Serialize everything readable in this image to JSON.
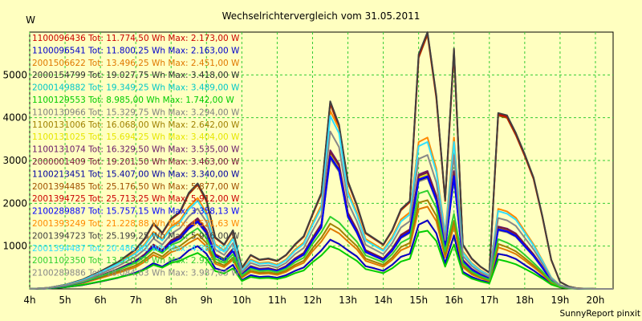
{
  "chart_data": {
    "type": "line",
    "title": "Wechselrichtervergleich vom 31.05.2011",
    "ylabel": "W",
    "footer": "SunnyReport pinxit",
    "ylim": [
      0,
      6000
    ],
    "yticks": [
      1000,
      2000,
      3000,
      4000,
      5000
    ],
    "xlim": [
      4,
      20.5
    ],
    "x_tick_labels": [
      "4h",
      "5h",
      "6h",
      "7h",
      "8h",
      "9h",
      "10h",
      "11h",
      "12h",
      "13h",
      "14h",
      "15h",
      "16h",
      "17h",
      "18h",
      "19h",
      "20h"
    ],
    "grid": true,
    "legend_position": "top-left",
    "series": [
      {
        "name": "1100096436 Tot: 11.774,50 Wh Max: 2.173,00 W",
        "color": "#cc0000",
        "scale": 1.0,
        "shape": "A"
      },
      {
        "name": "1100096541 Tot: 11.800,25 Wh Max: 2.163,00 W",
        "color": "#0000cc",
        "scale": 1.0,
        "shape": "A"
      },
      {
        "name": "2001506622 Tot: 13.496,25 Wh Max: 2.451,00 W",
        "color": "#e07800",
        "scale": 1.13,
        "shape": "B"
      },
      {
        "name": "2000154799 Tot: 19.027,75 Wh Max: 3.418,00 W",
        "color": "#333333",
        "scale": 1.57,
        "shape": "C"
      },
      {
        "name": "2000149882 Tot: 19.349,25 Wh Max: 3.489,00 W",
        "color": "#00c8c8",
        "scale": 1.6,
        "shape": "C"
      },
      {
        "name": "1100129553 Tot: 8.985,00 Wh Max: 1.742,00 W",
        "color": "#00cc00",
        "scale": 0.8,
        "shape": "B"
      },
      {
        "name": "1100130966 Tot: 15.329,75 Wh Max: 3.294,00 W",
        "color": "#808080",
        "scale": 1.52,
        "shape": "C"
      },
      {
        "name": "1100131006 Tot: 16.068,00 Wh Max: 2.642,00 W",
        "color": "#a08000",
        "scale": 1.22,
        "shape": "B"
      },
      {
        "name": "1100131025 Tot: 15.694,25 Wh Max: 3.404,00 W",
        "color": "#e6e600",
        "scale": 1.57,
        "shape": "C"
      },
      {
        "name": "1100131074 Tot: 16.329,50 Wh Max: 3.535,00 W",
        "color": "#6a1a6a",
        "scale": 1.62,
        "shape": "C"
      },
      {
        "name": "2000001409 Tot: 19.201,50 Wh Max: 3.463,00 W",
        "color": "#7a1a3a",
        "scale": 1.6,
        "shape": "C"
      },
      {
        "name": "1100213451 Tot: 15.407,00 Wh Max: 3.340,00 W",
        "color": "#0000a0",
        "scale": 1.54,
        "shape": "C"
      },
      {
        "name": "2001394485 Tot: 25.176,50 Wh Max: 5.877,00 W",
        "color": "#a05000",
        "scale": 2.7,
        "shape": "D"
      },
      {
        "name": "2001394725 Tot: 25.713,25 Wh Max: 5.912,00 W",
        "color": "#cc0000",
        "scale": 2.72,
        "shape": "D"
      },
      {
        "name": "2100289887 Tot: 15.757,15 Wh Max: 3.358,13 W",
        "color": "#0000ff",
        "scale": 1.55,
        "shape": "C"
      },
      {
        "name": "2001393249 Tot: 21.228,88 Wh Max: 4.521,63 W",
        "color": "#ff8800",
        "scale": 2.08,
        "shape": "C"
      },
      {
        "name": "2001394723 Tot: 25.199,25 Wh Max: 5.956,00 W",
        "color": "#404040",
        "scale": 2.74,
        "shape": "D"
      },
      {
        "name": "2001394487 Tot: 20.486,63 Wh Max: 4.387,00 W",
        "color": "#30e0ff",
        "scale": 2.02,
        "shape": "C"
      },
      {
        "name": "2001102350 Tot: 13.520,50 Wh Max: 2.928,00 W",
        "color": "#30d030",
        "scale": 1.35,
        "shape": "B"
      },
      {
        "name": "2100289886 Tot: 18.084,63 Wh Max: 3.987,63 W",
        "color": "#888888",
        "scale": 1.84,
        "shape": "C"
      }
    ],
    "base_profiles": {
      "x": [
        4.0,
        4.5,
        5.0,
        5.5,
        6.0,
        6.5,
        7.0,
        7.25,
        7.5,
        7.75,
        8.0,
        8.25,
        8.5,
        8.75,
        9.0,
        9.25,
        9.5,
        9.75,
        10.0,
        10.25,
        10.5,
        10.75,
        11.0,
        11.25,
        11.5,
        11.75,
        12.0,
        12.25,
        12.5,
        12.75,
        13.0,
        13.25,
        13.5,
        13.75,
        14.0,
        14.25,
        14.5,
        14.75,
        15.0,
        15.25,
        15.5,
        15.75,
        16.0,
        16.25,
        16.5,
        16.75,
        17.0,
        17.25,
        17.5,
        17.75,
        18.0,
        18.25,
        18.5,
        18.75,
        19.0,
        19.25,
        19.5,
        20.0,
        20.5
      ],
      "A": [
        0,
        10,
        40,
        90,
        170,
        260,
        380,
        470,
        600,
        520,
        650,
        720,
        900,
        1000,
        820,
        480,
        420,
        560,
        200,
        320,
        280,
        290,
        260,
        320,
        420,
        500,
        700,
        900,
        1150,
        1050,
        900,
        760,
        530,
        480,
        420,
        560,
        750,
        820,
        1500,
        1600,
        1300,
        600,
        1250,
        400,
        280,
        200,
        150,
        820,
        780,
        700,
        560,
        430,
        280,
        120,
        40,
        15,
        5,
        0,
        0
      ],
      "B": [
        0,
        15,
        55,
        120,
        220,
        330,
        450,
        560,
        700,
        620,
        760,
        820,
        950,
        1050,
        880,
        520,
        450,
        600,
        230,
        350,
        310,
        320,
        290,
        350,
        460,
        540,
        780,
        980,
        1250,
        1150,
        980,
        820,
        580,
        520,
        460,
        600,
        800,
        880,
        1650,
        1700,
        1400,
        650,
        1300,
        450,
        300,
        220,
        160,
        860,
        800,
        720,
        590,
        450,
        300,
        130,
        45,
        18,
        5,
        0,
        0
      ],
      "C": [
        0,
        12,
        45,
        100,
        190,
        290,
        410,
        500,
        640,
        560,
        700,
        770,
        920,
        1020,
        850,
        500,
        430,
        580,
        210,
        330,
        290,
        300,
        270,
        330,
        440,
        520,
        740,
        940,
        2000,
        1800,
        1100,
        860,
        560,
        500,
        440,
        580,
        780,
        860,
        1650,
        1700,
        1350,
        620,
        1700,
        420,
        290,
        210,
        155,
        900,
        870,
        800,
        650,
        500,
        320,
        130,
        42,
        16,
        5,
        0,
        0
      ],
      "D": [
        0,
        8,
        35,
        80,
        150,
        230,
        340,
        430,
        560,
        480,
        600,
        660,
        820,
        900,
        760,
        440,
        380,
        500,
        180,
        290,
        250,
        260,
        240,
        290,
        380,
        450,
        640,
        820,
        1600,
        1400,
        920,
        720,
        480,
        430,
        380,
        500,
        680,
        750,
        2000,
        2200,
        1650,
        760,
        2050,
        380,
        260,
        190,
        140,
        1500,
        1480,
        1330,
        1150,
        950,
        620,
        250,
        60,
        20,
        5,
        0,
        0
      ]
    }
  }
}
